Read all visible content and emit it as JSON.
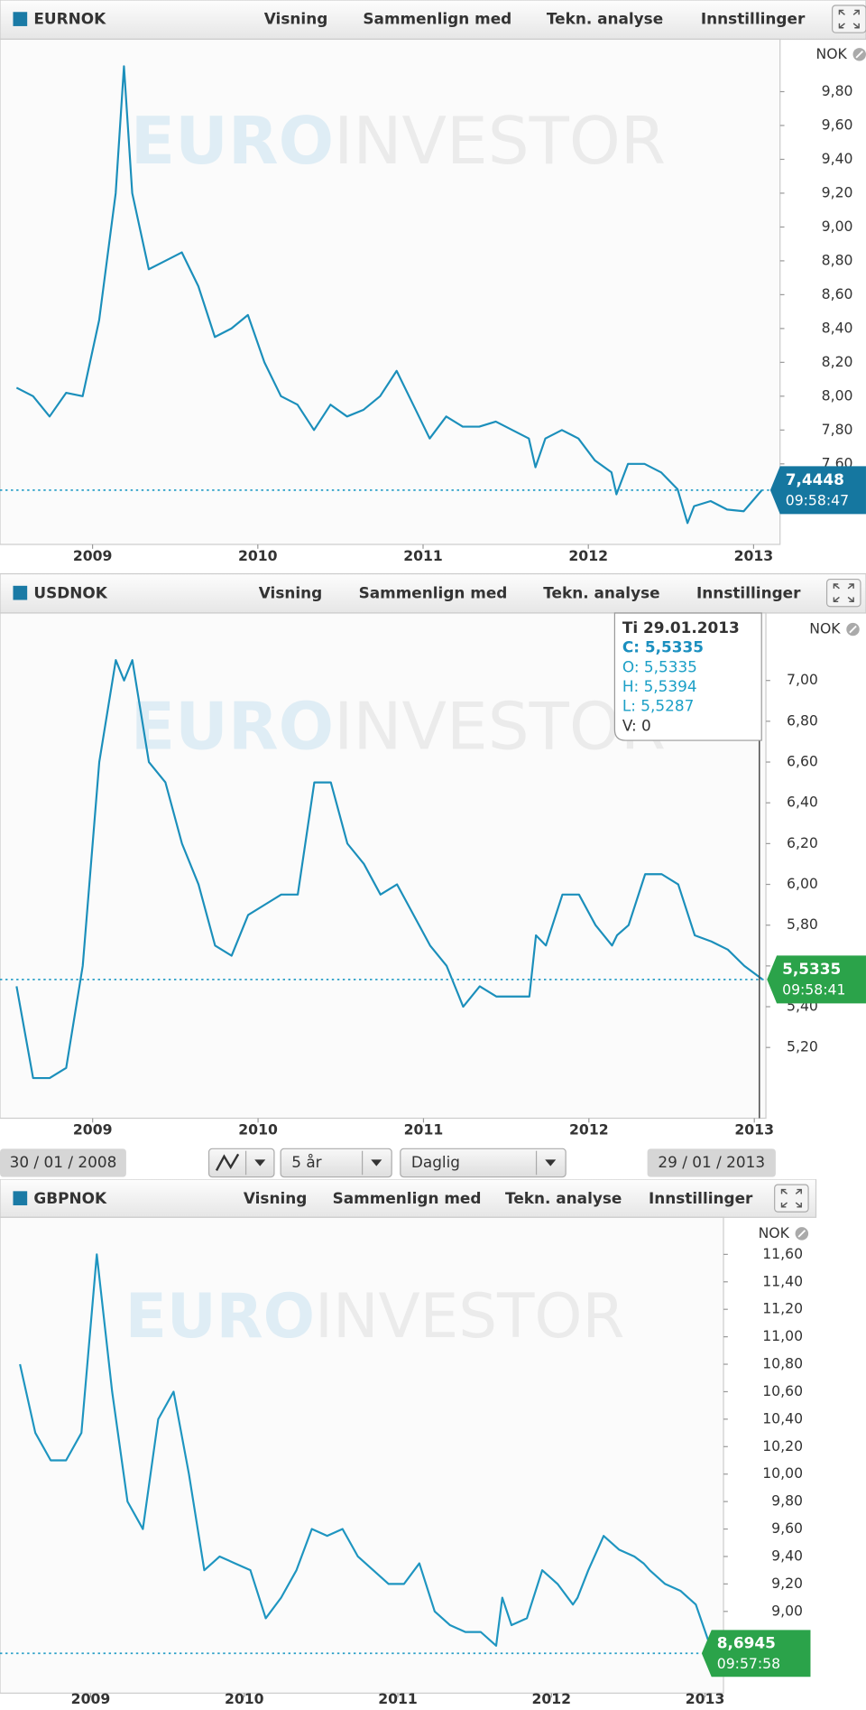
{
  "menu": [
    "Visning",
    "Sammenlign med",
    "Tekn. analyse",
    "Innstillinger"
  ],
  "watermark": {
    "bold": "EURO",
    "light": "INVESTOR"
  },
  "tooltip": {
    "date": "Ti 29.01.2013",
    "lines": [
      "C: 5,5335",
      "O: 5,5335",
      "H: 5,5394",
      "L: 5,5287",
      "V: 0"
    ]
  },
  "range": {
    "start": "30 / 01 / 2008",
    "period": "5 år",
    "interval": "Daglig",
    "end": "29 / 01 / 2013"
  },
  "chart_data": [
    {
      "type": "line",
      "title": "EURNOK",
      "unit": "NOK",
      "color": "#1b8fbb",
      "x": [
        2008.54,
        2008.64,
        2008.74,
        2008.84,
        2008.94,
        2009.04,
        2009.14,
        2009.19,
        2009.24,
        2009.34,
        2009.44,
        2009.54,
        2009.64,
        2009.74,
        2009.84,
        2009.94,
        2010.04,
        2010.14,
        2010.24,
        2010.34,
        2010.44,
        2010.54,
        2010.64,
        2010.74,
        2010.84,
        2010.94,
        2011.04,
        2011.14,
        2011.24,
        2011.34,
        2011.44,
        2011.54,
        2011.64,
        2011.68,
        2011.74,
        2011.84,
        2011.94,
        2012.04,
        2012.14,
        2012.17,
        2012.24,
        2012.34,
        2012.44,
        2012.54,
        2012.6,
        2012.64,
        2012.74,
        2012.84,
        2012.94,
        2013.05
      ],
      "values": [
        8.05,
        8.0,
        7.88,
        8.02,
        8.0,
        8.45,
        9.2,
        9.95,
        9.2,
        8.75,
        8.8,
        8.85,
        8.65,
        8.35,
        8.4,
        8.48,
        8.2,
        8.0,
        7.95,
        7.8,
        7.95,
        7.88,
        7.92,
        8.0,
        8.15,
        7.95,
        7.75,
        7.88,
        7.82,
        7.82,
        7.85,
        7.8,
        7.75,
        7.58,
        7.75,
        7.8,
        7.75,
        7.62,
        7.55,
        7.42,
        7.6,
        7.6,
        7.55,
        7.45,
        7.25,
        7.35,
        7.38,
        7.33,
        7.32,
        7.4448
      ],
      "xlim": [
        2008.44,
        2013.16
      ],
      "xticks": [
        2009,
        2010,
        2011,
        2012,
        2013
      ],
      "ylim": [
        7.124,
        10.11
      ],
      "yticks": [
        {
          "value": 7.6,
          "label": "7,60"
        },
        {
          "value": 7.8,
          "label": "7,80"
        },
        {
          "value": 8.0,
          "label": "8,00"
        },
        {
          "value": 8.2,
          "label": "8,20"
        },
        {
          "value": 8.4,
          "label": "8,40"
        },
        {
          "value": 8.6,
          "label": "8,60"
        },
        {
          "value": 8.8,
          "label": "8,80"
        },
        {
          "value": 9.0,
          "label": "9,00"
        },
        {
          "value": 9.2,
          "label": "9,20"
        },
        {
          "value": 9.4,
          "label": "9,40"
        },
        {
          "value": 9.6,
          "label": "9,60"
        },
        {
          "value": 9.8,
          "label": "9,80"
        }
      ],
      "current": {
        "value": 7.4448,
        "label": "7,4448",
        "time": "09:58:47",
        "color": "#1577a0"
      }
    },
    {
      "type": "line",
      "title": "USDNOK",
      "unit": "NOK",
      "color": "#1b8fbb",
      "x": [
        2008.54,
        2008.64,
        2008.74,
        2008.84,
        2008.94,
        2009.04,
        2009.14,
        2009.19,
        2009.24,
        2009.34,
        2009.44,
        2009.54,
        2009.64,
        2009.74,
        2009.84,
        2009.94,
        2010.04,
        2010.14,
        2010.24,
        2010.34,
        2010.44,
        2010.54,
        2010.64,
        2010.74,
        2010.84,
        2010.94,
        2011.04,
        2011.14,
        2011.24,
        2011.34,
        2011.44,
        2011.54,
        2011.64,
        2011.68,
        2011.74,
        2011.84,
        2011.94,
        2012.04,
        2012.14,
        2012.17,
        2012.24,
        2012.34,
        2012.44,
        2012.54,
        2012.6,
        2012.64,
        2012.74,
        2012.84,
        2012.94,
        2013.05
      ],
      "values": [
        5.5,
        5.05,
        5.05,
        5.1,
        5.6,
        6.6,
        7.1,
        7.0,
        7.1,
        6.6,
        6.5,
        6.2,
        6.0,
        5.7,
        5.65,
        5.85,
        5.9,
        5.95,
        5.95,
        6.5,
        6.5,
        6.2,
        6.1,
        5.95,
        6.0,
        5.85,
        5.7,
        5.6,
        5.4,
        5.5,
        5.45,
        5.45,
        5.45,
        5.75,
        5.7,
        5.95,
        5.95,
        5.8,
        5.7,
        5.75,
        5.8,
        6.05,
        6.05,
        6.0,
        5.85,
        5.75,
        5.72,
        5.68,
        5.6,
        5.5335
      ],
      "xlim": [
        2008.44,
        2013.07
      ],
      "xticks": [
        2009,
        2010,
        2011,
        2012,
        2013
      ],
      "ylim": [
        4.853,
        7.331
      ],
      "yticks": [
        {
          "value": 5.2,
          "label": "5,20"
        },
        {
          "value": 5.4,
          "label": "5,40"
        },
        {
          "value": 5.6,
          "label": "5,60"
        },
        {
          "value": 5.8,
          "label": "5,80"
        },
        {
          "value": 6.0,
          "label": "6,00"
        },
        {
          "value": 6.2,
          "label": "6,20"
        },
        {
          "value": 6.4,
          "label": "6,40"
        },
        {
          "value": 6.6,
          "label": "6,60"
        },
        {
          "value": 6.8,
          "label": "6,80"
        },
        {
          "value": 7.0,
          "label": "7,00"
        }
      ],
      "current": {
        "value": 5.5335,
        "label": "5,5335",
        "time": "09:58:41",
        "color": "#2ba34a"
      }
    },
    {
      "type": "line",
      "title": "GBPNOK",
      "unit": "NOK",
      "color": "#1e95c0",
      "x": [
        2008.54,
        2008.64,
        2008.74,
        2008.84,
        2008.94,
        2009.04,
        2009.14,
        2009.19,
        2009.24,
        2009.34,
        2009.44,
        2009.54,
        2009.64,
        2009.74,
        2009.84,
        2009.94,
        2010.04,
        2010.14,
        2010.24,
        2010.34,
        2010.44,
        2010.54,
        2010.64,
        2010.74,
        2010.84,
        2010.94,
        2011.04,
        2011.14,
        2011.24,
        2011.34,
        2011.44,
        2011.54,
        2011.64,
        2011.68,
        2011.74,
        2011.84,
        2011.94,
        2012.04,
        2012.14,
        2012.17,
        2012.24,
        2012.34,
        2012.44,
        2012.54,
        2012.6,
        2012.64,
        2012.74,
        2012.84,
        2012.94,
        2013.05
      ],
      "values": [
        10.8,
        10.3,
        10.1,
        10.1,
        10.3,
        11.6,
        10.6,
        10.2,
        9.8,
        9.6,
        10.4,
        10.6,
        10.0,
        9.3,
        9.4,
        9.35,
        9.3,
        8.95,
        9.1,
        9.3,
        9.6,
        9.55,
        9.6,
        9.4,
        9.3,
        9.2,
        9.2,
        9.35,
        9.0,
        8.9,
        8.85,
        8.85,
        8.75,
        9.1,
        8.9,
        8.95,
        9.3,
        9.2,
        9.05,
        9.1,
        9.3,
        9.55,
        9.45,
        9.4,
        9.35,
        9.3,
        9.2,
        9.15,
        9.05,
        8.6945
      ],
      "xlim": [
        2008.41,
        2013.12
      ],
      "xticks": [
        2009,
        2010,
        2011,
        2012,
        2013
      ],
      "ylim": [
        8.405,
        11.87
      ],
      "yticks": [
        {
          "value": 9.0,
          "label": "9,00"
        },
        {
          "value": 9.2,
          "label": "9,20"
        },
        {
          "value": 9.4,
          "label": "9,40"
        },
        {
          "value": 9.6,
          "label": "9,60"
        },
        {
          "value": 9.8,
          "label": "9,80"
        },
        {
          "value": 10.0,
          "label": "10,00"
        },
        {
          "value": 10.2,
          "label": "10,20"
        },
        {
          "value": 10.4,
          "label": "10,40"
        },
        {
          "value": 10.6,
          "label": "10,60"
        },
        {
          "value": 10.8,
          "label": "10,80"
        },
        {
          "value": 11.0,
          "label": "11,00"
        },
        {
          "value": 11.2,
          "label": "11,20"
        },
        {
          "value": 11.4,
          "label": "11,40"
        },
        {
          "value": 11.6,
          "label": "11,60"
        }
      ],
      "current": {
        "value": 8.6945,
        "label": "8,6945",
        "time": "09:57:58",
        "color": "#2ba34a"
      }
    }
  ]
}
